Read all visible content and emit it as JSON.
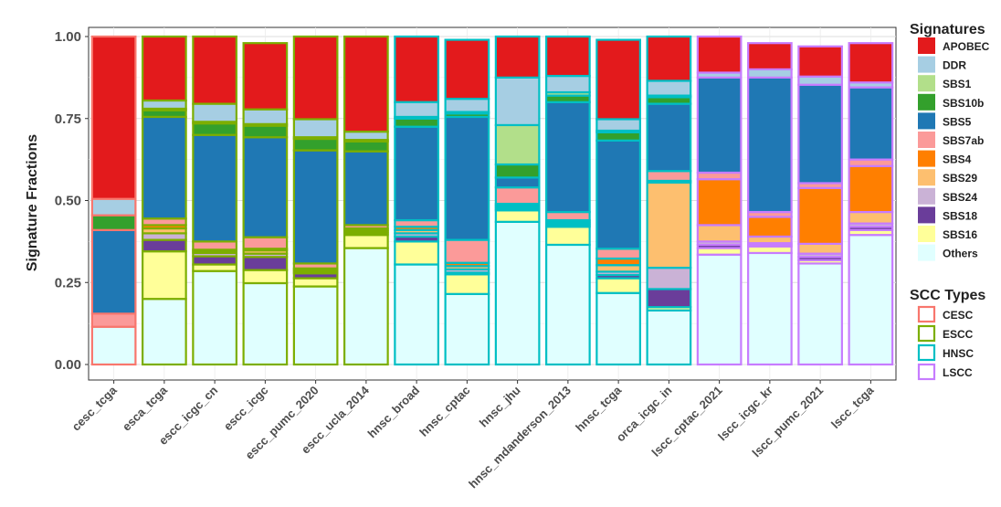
{
  "chart_data": {
    "type": "bar",
    "stacked": true,
    "ylabel": "Signature Fractions",
    "xlabel": "",
    "ylim": [
      0,
      1
    ],
    "yticks": [
      "0.00",
      "0.25",
      "0.50",
      "0.75",
      "1.00"
    ],
    "grid": true,
    "legend_placement": "right",
    "categories": [
      "cesc_tcga",
      "esca_tcga",
      "escc_icgc_cn",
      "escc_icgc",
      "escc_pumc_2020",
      "escc_ucla_2014",
      "hnsc_broad",
      "hnsc_cptac",
      "hnsc_jhu",
      "hnsc_mdanderson_2013",
      "hnsc_tcga",
      "orca_icgc_in",
      "lscc_cptac_2021",
      "lscc_icgc_kr",
      "lscc_pumc_2021",
      "lscc_tcga"
    ],
    "scc_types": [
      "CESC",
      "ESCC",
      "ESCC",
      "ESCC",
      "ESCC",
      "ESCC",
      "HNSC",
      "HNSC",
      "HNSC",
      "HNSC",
      "HNSC",
      "HNSC",
      "LSCC",
      "LSCC",
      "LSCC",
      "LSCC"
    ],
    "series": [
      {
        "name": "Others",
        "color": "#e0ffff",
        "values": [
          0.115,
          0.2,
          0.285,
          0.248,
          0.238,
          0.355,
          0.305,
          0.215,
          0.435,
          0.365,
          0.218,
          0.165,
          0.335,
          0.34,
          0.308,
          0.395
        ]
      },
      {
        "name": "SBS16",
        "color": "#ffff99",
        "values": [
          0.0,
          0.145,
          0.02,
          0.04,
          0.025,
          0.04,
          0.07,
          0.06,
          0.035,
          0.055,
          0.045,
          0.01,
          0.02,
          0.02,
          0.01,
          0.015
        ]
      },
      {
        "name": "SBS18",
        "color": "#6a3d9a",
        "values": [
          0.0,
          0.035,
          0.025,
          0.04,
          0.015,
          0.005,
          0.015,
          0.005,
          0.005,
          0.005,
          0.01,
          0.055,
          0.01,
          0.005,
          0.01,
          0.01
        ]
      },
      {
        "name": "SBS24",
        "color": "#cab2d6",
        "values": [
          0.0,
          0.02,
          0.01,
          0.01,
          0.005,
          0.005,
          0.01,
          0.01,
          0.005,
          0.005,
          0.01,
          0.065,
          0.01,
          0.005,
          0.01,
          0.01
        ]
      },
      {
        "name": "SBS29",
        "color": "#fdbf6f",
        "values": [
          0.0,
          0.015,
          0.005,
          0.01,
          0.005,
          0.005,
          0.01,
          0.01,
          0.005,
          0.005,
          0.02,
          0.26,
          0.05,
          0.02,
          0.03,
          0.035
        ]
      },
      {
        "name": "SBS4",
        "color": "#ff7f00",
        "values": [
          0.0,
          0.01,
          0.005,
          0.005,
          0.005,
          0.005,
          0.01,
          0.01,
          0.005,
          0.005,
          0.02,
          0.005,
          0.14,
          0.06,
          0.17,
          0.14
        ]
      },
      {
        "name": "SBS7ab",
        "color": "#fb9a99",
        "values": [
          0.04,
          0.02,
          0.025,
          0.035,
          0.015,
          0.01,
          0.02,
          0.07,
          0.05,
          0.025,
          0.03,
          0.03,
          0.02,
          0.015,
          0.015,
          0.02
        ]
      },
      {
        "name": "SBS5",
        "color": "#1f78b4",
        "values": [
          0.255,
          0.31,
          0.325,
          0.305,
          0.345,
          0.225,
          0.285,
          0.375,
          0.03,
          0.335,
          0.33,
          0.205,
          0.29,
          0.41,
          0.3,
          0.22
        ]
      },
      {
        "name": "SBS10b",
        "color": "#33a02c",
        "values": [
          0.045,
          0.02,
          0.035,
          0.035,
          0.035,
          0.03,
          0.025,
          0.01,
          0.04,
          0.02,
          0.025,
          0.02,
          0.0,
          0.0,
          0.0,
          0.0
        ]
      },
      {
        "name": "SBS1",
        "color": "#b2df8a",
        "values": [
          0.0,
          0.005,
          0.005,
          0.005,
          0.005,
          0.005,
          0.005,
          0.005,
          0.12,
          0.01,
          0.005,
          0.005,
          0.0,
          0.0,
          0.0,
          0.0
        ]
      },
      {
        "name": "DDR",
        "color": "#a6cee3",
        "values": [
          0.05,
          0.025,
          0.055,
          0.045,
          0.055,
          0.025,
          0.045,
          0.04,
          0.145,
          0.05,
          0.035,
          0.045,
          0.015,
          0.025,
          0.025,
          0.015
        ]
      },
      {
        "name": "APOBEC",
        "color": "#e31a1c",
        "values": [
          0.495,
          0.195,
          0.205,
          0.202,
          0.252,
          0.29,
          0.2,
          0.18,
          0.125,
          0.12,
          0.242,
          0.135,
          0.11,
          0.08,
          0.092,
          0.12
        ]
      }
    ],
    "legends": [
      {
        "title": "Signatures",
        "entries": [
          "APOBEC",
          "DDR",
          "SBS1",
          "SBS10b",
          "SBS5",
          "SBS7ab",
          "SBS4",
          "SBS29",
          "SBS24",
          "SBS18",
          "SBS16",
          "Others"
        ]
      },
      {
        "title": "SCC Types",
        "entries": [
          {
            "name": "CESC",
            "color": "#f8766d"
          },
          {
            "name": "ESCC",
            "color": "#7cae00"
          },
          {
            "name": "HNSC",
            "color": "#00bfc4"
          },
          {
            "name": "LSCC",
            "color": "#c77cff"
          }
        ]
      }
    ]
  }
}
